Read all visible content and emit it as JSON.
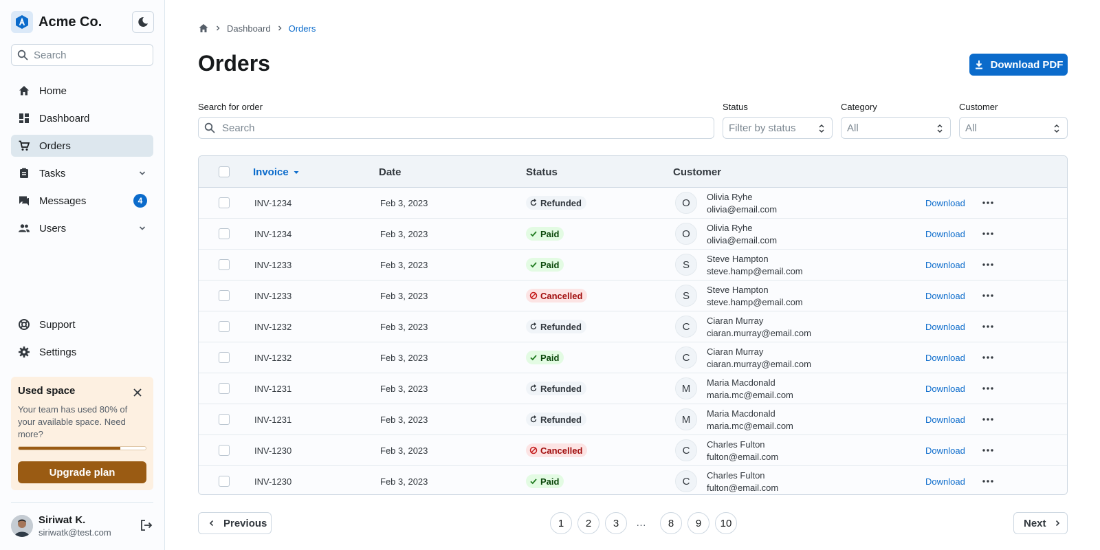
{
  "brand": {
    "name": "Acme Co."
  },
  "sidebar": {
    "search_placeholder": "Search",
    "items": [
      {
        "label": "Home",
        "icon": "home-icon"
      },
      {
        "label": "Dashboard",
        "icon": "dashboard-icon"
      },
      {
        "label": "Orders",
        "icon": "cart-icon",
        "active": true
      },
      {
        "label": "Tasks",
        "icon": "tasks-icon",
        "expandable": true
      },
      {
        "label": "Messages",
        "icon": "messages-icon",
        "badge": "4"
      },
      {
        "label": "Users",
        "icon": "users-icon",
        "expandable": true
      }
    ],
    "bottom_items": [
      {
        "label": "Support",
        "icon": "support-icon"
      },
      {
        "label": "Settings",
        "icon": "gear-icon"
      }
    ],
    "space_card": {
      "title": "Used space",
      "text": "Your team has used 80% of your available space. Need more?",
      "progress": 0.8,
      "button": "Upgrade plan"
    },
    "user": {
      "name": "Siriwat K.",
      "email": "siriwatk@test.com"
    }
  },
  "breadcrumb": {
    "items": [
      "Dashboard",
      "Orders"
    ]
  },
  "page": {
    "title": "Orders",
    "download_label": "Download PDF"
  },
  "filters": {
    "search_label": "Search for order",
    "search_placeholder": "Search",
    "status_label": "Status",
    "status_placeholder": "Filter by status",
    "category_label": "Category",
    "category_value": "All",
    "customer_label": "Customer",
    "customer_value": "All"
  },
  "table": {
    "headers": {
      "invoice": "Invoice",
      "date": "Date",
      "status": "Status",
      "customer": "Customer"
    },
    "download_label": "Download",
    "rows": [
      {
        "invoice": "INV-1234",
        "date": "Feb 3, 2023",
        "status": "Refunded",
        "initial": "O",
        "name": "Olivia Ryhe",
        "email": "olivia@email.com"
      },
      {
        "invoice": "INV-1234",
        "date": "Feb 3, 2023",
        "status": "Paid",
        "initial": "O",
        "name": "Olivia Ryhe",
        "email": "olivia@email.com"
      },
      {
        "invoice": "INV-1233",
        "date": "Feb 3, 2023",
        "status": "Paid",
        "initial": "S",
        "name": "Steve Hampton",
        "email": "steve.hamp@email.com"
      },
      {
        "invoice": "INV-1233",
        "date": "Feb 3, 2023",
        "status": "Cancelled",
        "initial": "S",
        "name": "Steve Hampton",
        "email": "steve.hamp@email.com"
      },
      {
        "invoice": "INV-1232",
        "date": "Feb 3, 2023",
        "status": "Refunded",
        "initial": "C",
        "name": "Ciaran Murray",
        "email": "ciaran.murray@email.com"
      },
      {
        "invoice": "INV-1232",
        "date": "Feb 3, 2023",
        "status": "Paid",
        "initial": "C",
        "name": "Ciaran Murray",
        "email": "ciaran.murray@email.com"
      },
      {
        "invoice": "INV-1231",
        "date": "Feb 3, 2023",
        "status": "Refunded",
        "initial": "M",
        "name": "Maria Macdonald",
        "email": "maria.mc@email.com"
      },
      {
        "invoice": "INV-1231",
        "date": "Feb 3, 2023",
        "status": "Refunded",
        "initial": "M",
        "name": "Maria Macdonald",
        "email": "maria.mc@email.com"
      },
      {
        "invoice": "INV-1230",
        "date": "Feb 3, 2023",
        "status": "Cancelled",
        "initial": "C",
        "name": "Charles Fulton",
        "email": "fulton@email.com"
      },
      {
        "invoice": "INV-1230",
        "date": "Feb 3, 2023",
        "status": "Paid",
        "initial": "C",
        "name": "Charles Fulton",
        "email": "fulton@email.com"
      }
    ]
  },
  "pagination": {
    "previous": "Previous",
    "next": "Next",
    "pages": [
      "1",
      "2",
      "3",
      "8",
      "9",
      "10"
    ],
    "ellipsis": "…"
  },
  "colors": {
    "accent": "#0b6bcb",
    "warning": "#9a5b13",
    "success": "#1f7a1f",
    "danger": "#c41c1c"
  }
}
